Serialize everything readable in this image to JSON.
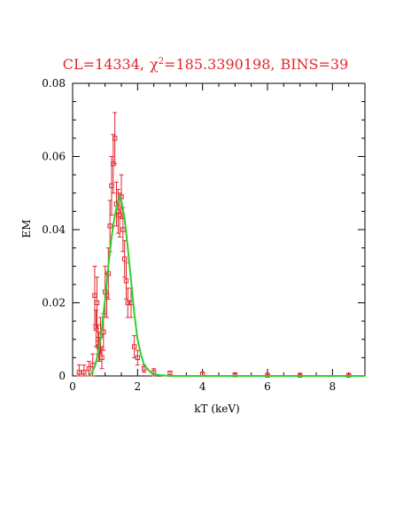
{
  "chart_data": {
    "type": "scatter",
    "title_parts": {
      "cl": "CL=14334,",
      "chi_symbol": "χ",
      "chi_sup": "2",
      "chi_value": "=185.3390198,",
      "bins": "BINS=39"
    },
    "xlabel": "kT (keV)",
    "ylabel": "EM",
    "xlim": [
      0,
      9
    ],
    "ylim": [
      0,
      0.08
    ],
    "x_ticks": [
      0,
      2,
      4,
      6,
      8
    ],
    "x_tick_labels": [
      "0",
      "2",
      "4",
      "6",
      "8"
    ],
    "y_ticks": [
      0,
      0.02,
      0.04,
      0.06,
      0.08
    ],
    "y_tick_labels": [
      "0",
      "0.02",
      "0.04",
      "0.06",
      "0.08"
    ],
    "grid": false,
    "colors": {
      "data": "#e0262c",
      "fit": "#2fcf2f",
      "title": "#e0262c",
      "axis": "#000000"
    },
    "series": [
      {
        "style": "points-with-error-bars",
        "x": [
          0.2,
          0.35,
          0.5,
          0.62,
          0.68,
          0.72,
          0.75,
          0.78,
          0.8,
          0.83,
          0.86,
          0.9,
          0.95,
          1.0,
          1.05,
          1.1,
          1.15,
          1.2,
          1.25,
          1.3,
          1.35,
          1.4,
          1.45,
          1.5,
          1.55,
          1.6,
          1.65,
          1.7,
          1.8,
          1.9,
          2.0,
          2.2,
          2.5,
          3.0,
          4.0,
          5.0,
          6.0,
          7.0,
          8.5
        ],
        "y": [
          0.001,
          0.001,
          0.002,
          0.003,
          0.022,
          0.013,
          0.02,
          0.01,
          0.008,
          0.007,
          0.011,
          0.005,
          0.012,
          0.023,
          0.022,
          0.028,
          0.041,
          0.052,
          0.058,
          0.065,
          0.047,
          0.045,
          0.044,
          0.049,
          0.04,
          0.032,
          0.026,
          0.02,
          0.02,
          0.008,
          0.005,
          0.002,
          0.001,
          0.0008,
          0.0005,
          0.0003,
          0.0002,
          0.0002,
          0.0002
        ],
        "err": [
          0.002,
          0.002,
          0.002,
          0.003,
          0.008,
          0.005,
          0.007,
          0.004,
          0.004,
          0.003,
          0.005,
          0.003,
          0.005,
          0.007,
          0.006,
          0.007,
          0.007,
          0.008,
          0.008,
          0.007,
          0.006,
          0.006,
          0.006,
          0.006,
          0.006,
          0.005,
          0.005,
          0.004,
          0.004,
          0.003,
          0.002,
          0.001,
          0.001,
          0.0005,
          0.0005,
          0.0003,
          0.0002,
          0.0002,
          0.0002
        ]
      },
      {
        "style": "fit-line",
        "x": [
          0.5,
          0.6,
          0.7,
          0.8,
          0.9,
          1.0,
          1.1,
          1.2,
          1.3,
          1.4,
          1.45,
          1.5,
          1.6,
          1.7,
          1.8,
          1.9,
          2.0,
          2.1,
          2.2,
          2.4,
          2.6,
          3.0,
          5.0,
          9.0
        ],
        "y": [
          0.0,
          0.001,
          0.003,
          0.007,
          0.013,
          0.021,
          0.03,
          0.038,
          0.044,
          0.048,
          0.049,
          0.048,
          0.043,
          0.035,
          0.026,
          0.017,
          0.01,
          0.006,
          0.003,
          0.001,
          0.0003,
          0.0,
          0.0,
          0.0
        ]
      }
    ]
  }
}
